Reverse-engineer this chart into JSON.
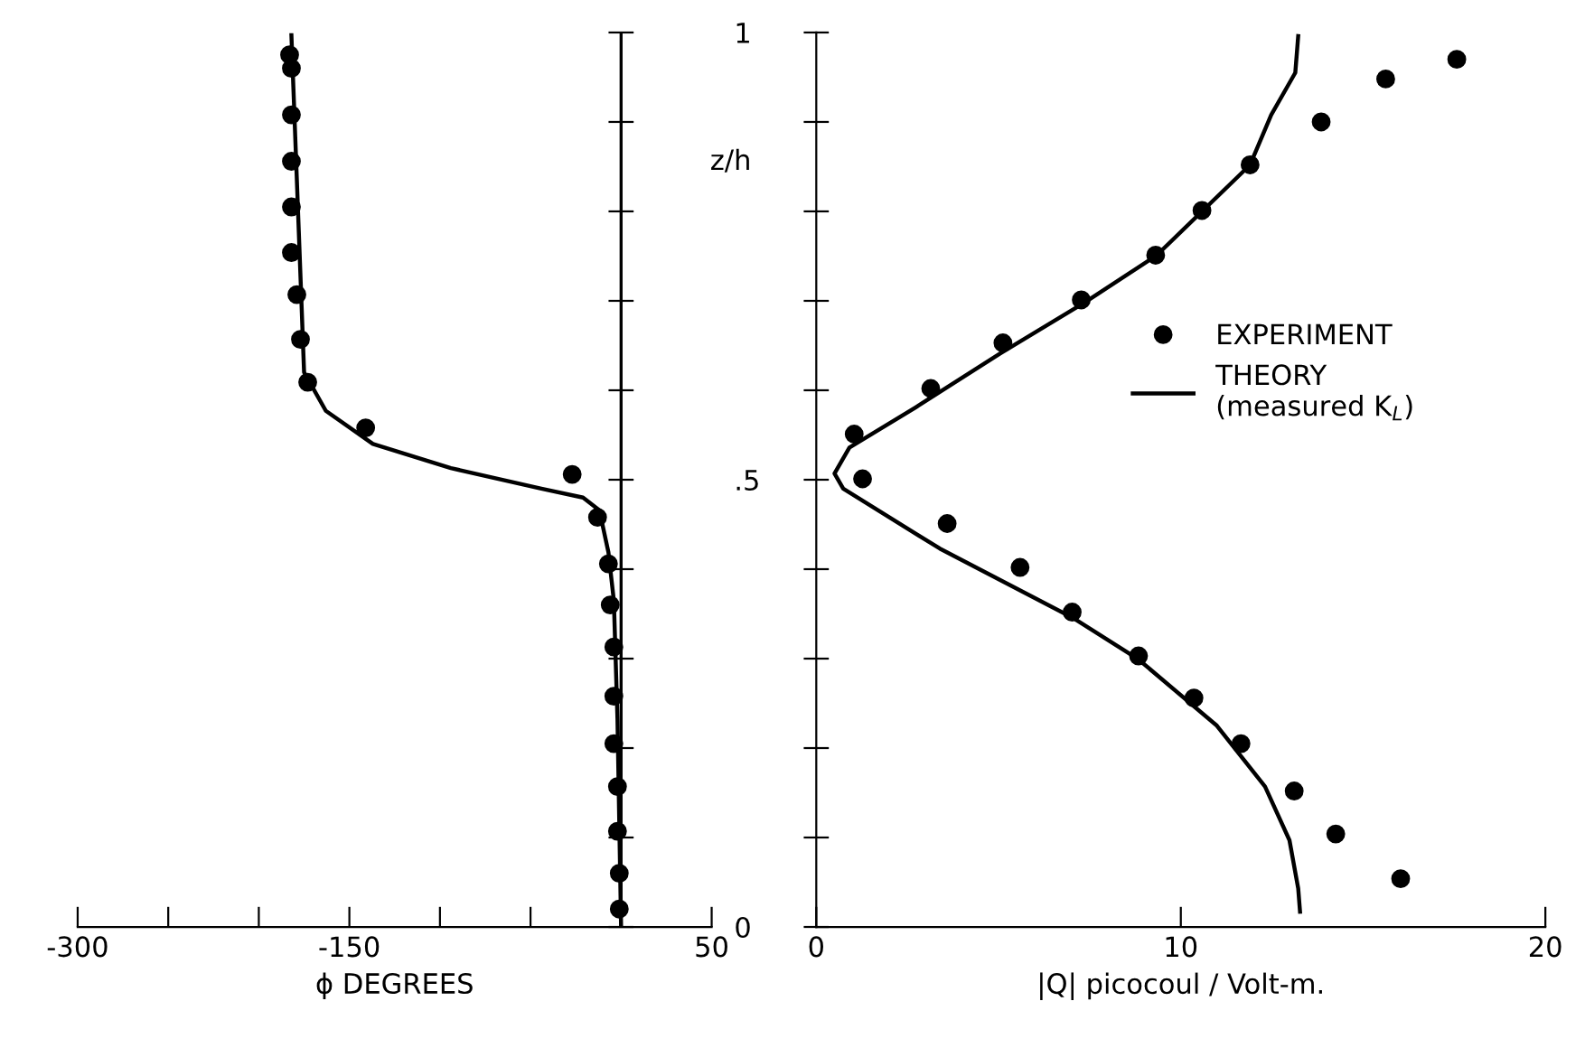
{
  "chart_data": [
    {
      "type": "scatter",
      "xlabel": "ϕ DEGREES",
      "ylabel": "z/h",
      "xlim": [
        -300,
        50
      ],
      "ylim": [
        0,
        1
      ],
      "xticks": [
        -300,
        {
          "value": -250,
          "label": null
        },
        {
          "value": -200,
          "label": null
        },
        -150,
        {
          "value": -100,
          "label": null
        },
        {
          "value": -50,
          "label": null
        },
        {
          "value": 0,
          "label": null
        },
        50
      ],
      "yticks": [
        {
          "value": 0,
          "label": "0"
        },
        {
          "value": 0.1,
          "label": null
        },
        {
          "value": 0.2,
          "label": null
        },
        {
          "value": 0.3,
          "label": null
        },
        {
          "value": 0.4,
          "label": null
        },
        {
          "value": 0.5,
          "label": ".5"
        },
        {
          "value": 0.6,
          "label": null
        },
        {
          "value": 0.7,
          "label": null
        },
        {
          "value": 0.8,
          "label": null
        },
        {
          "value": 0.9,
          "label": null
        },
        {
          "value": 1,
          "label": "1"
        }
      ],
      "grid": false,
      "legend": false,
      "ref_lines": [
        {
          "axis": "x",
          "value": 0,
          "color": "#000000"
        }
      ],
      "series": [
        {
          "color": "#000000",
          "marker": "circle",
          "x": [
            -183,
            -182,
            -182,
            -182,
            -182,
            -182,
            -179,
            -177,
            -173,
            -141,
            -27,
            -13,
            -7,
            -6,
            -4,
            -4,
            -4,
            -2,
            -2,
            -1,
            -1
          ],
          "values": [
            0.975,
            0.96,
            0.908,
            0.856,
            0.805,
            0.754,
            0.707,
            0.657,
            0.609,
            0.558,
            0.506,
            0.458,
            0.406,
            0.36,
            0.313,
            0.258,
            0.205,
            0.157,
            0.107,
            0.06,
            0.02
          ]
        },
        {
          "type": "line",
          "color": "#000000",
          "line_style": "solid",
          "x": [
            -182,
            -175,
            -163,
            -137,
            -94,
            -44,
            -21,
            -12,
            -7,
            -4,
            -2,
            0
          ],
          "values": [
            0.997,
            0.62,
            0.577,
            0.54,
            0.513,
            0.49,
            0.48,
            0.466,
            0.419,
            0.365,
            0.233,
            0.0
          ]
        }
      ]
    },
    {
      "type": "scatter",
      "xlabel": "|Q| picocoul / Volt-m.",
      "xlim": [
        0,
        20
      ],
      "ylim": [
        0,
        1
      ],
      "xticks": [
        0,
        10,
        20
      ],
      "yticks": [
        {
          "value": 0,
          "label": null
        },
        {
          "value": 0.1,
          "label": null
        },
        {
          "value": 0.2,
          "label": null
        },
        {
          "value": 0.3,
          "label": null
        },
        {
          "value": 0.4,
          "label": null
        },
        {
          "value": 0.5,
          "label": null
        },
        {
          "value": 0.6,
          "label": null
        },
        {
          "value": 0.7,
          "label": null
        },
        {
          "value": 0.8,
          "label": null
        },
        {
          "value": 0.9,
          "label": null
        },
        {
          "value": 1,
          "label": null
        }
      ],
      "tick_labels": "x",
      "grid": false,
      "legend": "right",
      "series": [
        {
          "name": "EXPERIMENT",
          "color": "#000000",
          "marker": "circle",
          "x": [
            17.57,
            15.62,
            13.85,
            11.9,
            10.58,
            9.31,
            7.27,
            5.12,
            3.14,
            1.04,
            1.27,
            3.59,
            5.59,
            7.02,
            8.84,
            10.36,
            11.65,
            13.11,
            14.25,
            16.03
          ],
          "values": [
            0.97,
            0.948,
            0.9,
            0.852,
            0.801,
            0.751,
            0.701,
            0.653,
            0.602,
            0.551,
            0.501,
            0.451,
            0.402,
            0.352,
            0.303,
            0.256,
            0.205,
            0.152,
            0.104,
            0.054
          ]
        },
        {
          "name": "THEORY\n(measured K$_{L}$)",
          "type": "line",
          "color": "#000000",
          "line_style": "solid",
          "x": [
            13.22,
            13.14,
            12.48,
            11.9,
            9.34,
            7.36,
            5.04,
            2.73,
            0.91,
            0.5,
            0.74,
            3.39,
            7.02,
            8.84,
            10.99,
            12.31,
            12.98,
            13.22,
            13.27
          ],
          "values": [
            0.996,
            0.955,
            0.908,
            0.852,
            0.751,
            0.698,
            0.641,
            0.581,
            0.536,
            0.507,
            0.49,
            0.423,
            0.346,
            0.299,
            0.225,
            0.157,
            0.097,
            0.043,
            0.017
          ]
        }
      ]
    }
  ]
}
